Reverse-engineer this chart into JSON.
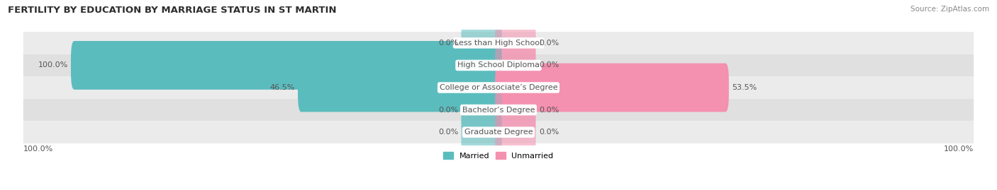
{
  "title": "FERTILITY BY EDUCATION BY MARRIAGE STATUS IN ST MARTIN",
  "source": "Source: ZipAtlas.com",
  "categories": [
    "Less than High School",
    "High School Diploma",
    "College or Associate’s Degree",
    "Bachelor’s Degree",
    "Graduate Degree"
  ],
  "married_values": [
    0.0,
    100.0,
    46.5,
    0.0,
    0.0
  ],
  "unmarried_values": [
    0.0,
    0.0,
    53.5,
    0.0,
    0.0
  ],
  "married_color": "#5bbcbe",
  "unmarried_color": "#f490b0",
  "married_label": "Married",
  "unmarried_label": "Unmarried",
  "row_colors": [
    "#ebebeb",
    "#e0e0e0",
    "#ebebeb",
    "#e0e0e0",
    "#ebebeb"
  ],
  "max_val": 100.0,
  "label_color": "#555555",
  "title_color": "#2d2d2d",
  "source_color": "#888888",
  "zero_bar_size": 8.0,
  "label_fontsize": 8.0,
  "title_fontsize": 9.5
}
